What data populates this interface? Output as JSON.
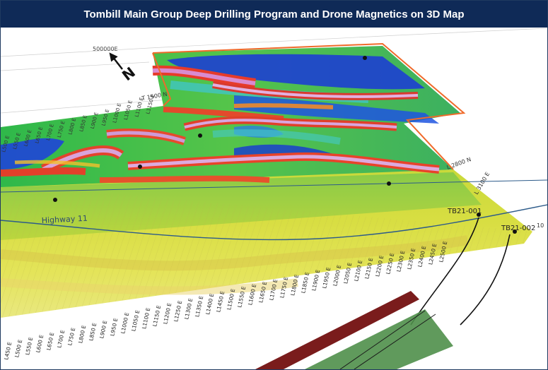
{
  "title": "Tombill Main Group Deep Drilling Program and Drone Magnetics on 3D Map",
  "map": {
    "north_label": "N",
    "easting_label": "500000E",
    "highway_label": "Highway 11",
    "block_top_label": "T 1500 N",
    "block_right_label": "L 2800 N",
    "side_label_right": "L 3100 E",
    "far_right_label": "10",
    "drillholes": [
      {
        "id": "TB21-001"
      },
      {
        "id": "TB21-002"
      }
    ],
    "line_labels": [
      "L450 E",
      "L500 E",
      "L550 E",
      "L600 E",
      "L650 E",
      "L700 E",
      "L750 E",
      "L800 E",
      "L850 E",
      "L900 E",
      "L950 E",
      "L1000 E",
      "L1050 E",
      "L1100 E",
      "L1150 E",
      "L1200 E",
      "L1250 E",
      "L1300 E",
      "L1350 E",
      "L1400 E",
      "L1450 E",
      "L1500 E",
      "L1550 E",
      "L1600 E",
      "L1650 E",
      "L1700 E",
      "L1750 E",
      "L1800 E",
      "L1850 E",
      "L1900 E",
      "L1950 E",
      "L2000 E",
      "L2050 E",
      "L2100 E",
      "L2150 E",
      "L2200 E",
      "L2250 E",
      "L2300 E",
      "L2350 E",
      "L2400 E",
      "L2450 E",
      "L2500 E"
    ],
    "left_edge_labels": [
      "L1150 E",
      "L1100 E",
      "L1050 E",
      "L1000 E",
      "L950 E",
      "L900 E",
      "L850 E",
      "L800 E",
      "L750 E",
      "L700 E",
      "L650 E",
      "L600 E",
      "L550 E",
      "L500 E"
    ],
    "colors": {
      "title_bg": "#0f2a57",
      "claim_outline": "#ef6a2a",
      "highway": "#2d5b8a",
      "block_red": "#7a1c1c",
      "block_green": "#4f8f4a"
    }
  }
}
